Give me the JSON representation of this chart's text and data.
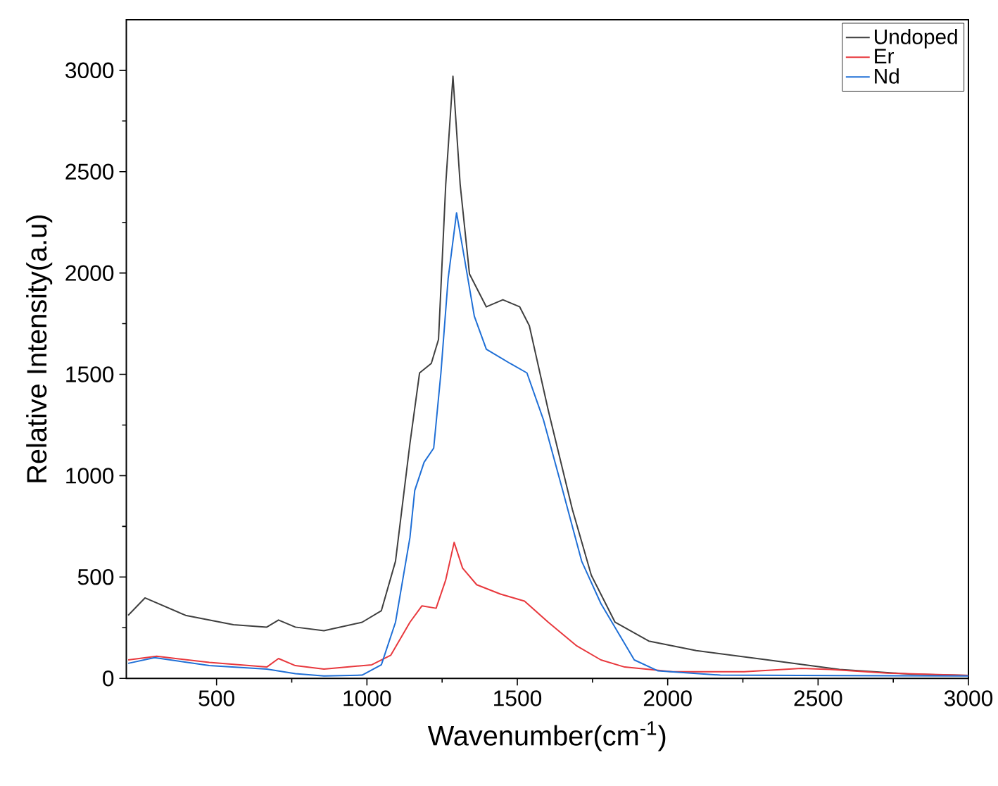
{
  "chart_data": {
    "type": "line",
    "xlabel": "Wavenumber(cm$^{-1}$)",
    "ylabel": "Relative Intensity(a.u)",
    "xlim": [
      200,
      3000
    ],
    "ylim": [
      0,
      3250
    ],
    "xticks": [
      500,
      1000,
      1500,
      2000,
      2500,
      3000
    ],
    "yticks": [
      0,
      500,
      1000,
      1500,
      2000,
      2500,
      3000
    ],
    "grid": false,
    "legend": "top right",
    "marker": "none",
    "line_style": "solid",
    "series": [
      {
        "name": "Undoped",
        "color": "#3f3f3f",
        "x": [
          206,
          262,
          397,
          556,
          667,
          706,
          762,
          857,
          984,
          1048,
          1095,
          1143,
          1175,
          1214,
          1238,
          1262,
          1286,
          1310,
          1341,
          1397,
          1452,
          1508,
          1540,
          1603,
          1683,
          1746,
          1825,
          1937,
          2095,
          2333,
          2571,
          2810,
          3000
        ],
        "values": [
          311,
          397,
          311,
          265,
          253,
          288,
          253,
          235,
          277,
          334,
          578,
          1159,
          1507,
          1554,
          1672,
          2437,
          2971,
          2437,
          1995,
          1833,
          1868,
          1833,
          1740,
          1322,
          834,
          509,
          277,
          184,
          137,
          91,
          44,
          21,
          15
        ]
      },
      {
        "name": "Er",
        "color": "#e8383d",
        "x": [
          206,
          301,
          476,
          667,
          706,
          762,
          857,
          1016,
          1079,
          1143,
          1183,
          1230,
          1262,
          1290,
          1318,
          1365,
          1444,
          1524,
          1603,
          1698,
          1778,
          1857,
          2016,
          2254,
          2444,
          2540,
          2730,
          3000
        ],
        "values": [
          91,
          109,
          79,
          56,
          98,
          63,
          46,
          67,
          114,
          277,
          358,
          346,
          486,
          671,
          544,
          462,
          416,
          381,
          277,
          160,
          91,
          56,
          33,
          33,
          49,
          44,
          26,
          15
        ]
      },
      {
        "name": "Nd",
        "color": "#1f6fd6",
        "x": [
          206,
          294,
          476,
          667,
          762,
          857,
          984,
          1048,
          1095,
          1143,
          1159,
          1190,
          1222,
          1246,
          1270,
          1298,
          1325,
          1357,
          1397,
          1476,
          1532,
          1587,
          1651,
          1714,
          1778,
          1889,
          1968,
          2175,
          2571,
          3000
        ],
        "values": [
          74,
          102,
          63,
          46,
          23,
          12,
          16,
          67,
          277,
          695,
          927,
          1066,
          1136,
          1507,
          1972,
          2297,
          2065,
          1787,
          1624,
          1554,
          1507,
          1275,
          927,
          578,
          369,
          91,
          37,
          16,
          14,
          12
        ]
      }
    ]
  }
}
